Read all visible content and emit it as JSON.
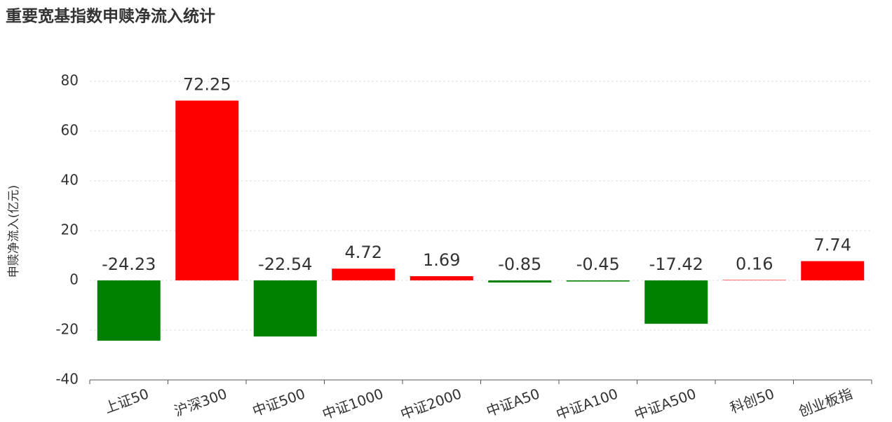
{
  "chart_data": {
    "type": "bar",
    "title": "重要宽基指数申赎净流入统计",
    "y_label": "申赎净流入(亿元)",
    "categories": [
      "上证50",
      "沪深300",
      "中证500",
      "中证1000",
      "中证2000",
      "中证A50",
      "中证A100",
      "中证A500",
      "科创50",
      "创业板指"
    ],
    "values": [
      -24.23,
      72.25,
      -22.54,
      4.72,
      1.69,
      -0.85,
      -0.45,
      -17.42,
      0.16,
      7.74
    ],
    "positive_color": "#ff0000",
    "negative_color": "#008000",
    "ylim": [
      -40,
      80
    ],
    "yticks": [
      -40,
      -20,
      0,
      20,
      40,
      60,
      80
    ],
    "grid": true
  }
}
